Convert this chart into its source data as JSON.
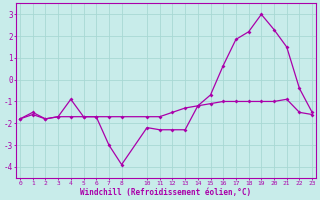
{
  "xlabel": "Windchill (Refroidissement éolien,°C)",
  "line_color": "#aa00aa",
  "bg_color": "#c8ecea",
  "grid_color": "#a8d8d4",
  "xlim": [
    -0.3,
    23.3
  ],
  "ylim": [
    -4.5,
    3.5
  ],
  "yticks": [
    -4,
    -3,
    -2,
    -1,
    0,
    1,
    2,
    3
  ],
  "xticks": [
    0,
    1,
    2,
    3,
    4,
    5,
    6,
    7,
    8,
    10,
    11,
    12,
    13,
    14,
    15,
    16,
    17,
    18,
    19,
    20,
    21,
    22,
    23
  ],
  "series1_x": [
    0,
    1,
    2,
    3,
    4,
    5,
    6,
    7,
    8,
    10,
    11,
    12,
    13,
    14,
    15,
    16,
    17,
    18,
    19,
    20,
    21,
    22,
    23
  ],
  "series1_y": [
    -1.8,
    -1.5,
    -1.8,
    -1.7,
    -1.7,
    -1.7,
    -1.7,
    -1.7,
    -1.7,
    -1.7,
    -1.7,
    -1.5,
    -1.3,
    -1.2,
    -1.1,
    -1.0,
    -1.0,
    -1.0,
    -1.0,
    -1.0,
    -0.9,
    -1.5,
    -1.6
  ],
  "series2_x": [
    0,
    1,
    2,
    3,
    4,
    5,
    6,
    7,
    8,
    10,
    11,
    12,
    13,
    14,
    15,
    16,
    17,
    18,
    19,
    20,
    21,
    22,
    23
  ],
  "series2_y": [
    -1.8,
    -1.6,
    -1.8,
    -1.7,
    -0.9,
    -1.7,
    -1.7,
    -3.0,
    -3.9,
    -2.2,
    -2.3,
    -2.3,
    -2.3,
    -1.2,
    -0.7,
    0.65,
    1.85,
    2.2,
    3.0,
    2.3,
    1.5,
    -0.4,
    -1.5
  ]
}
